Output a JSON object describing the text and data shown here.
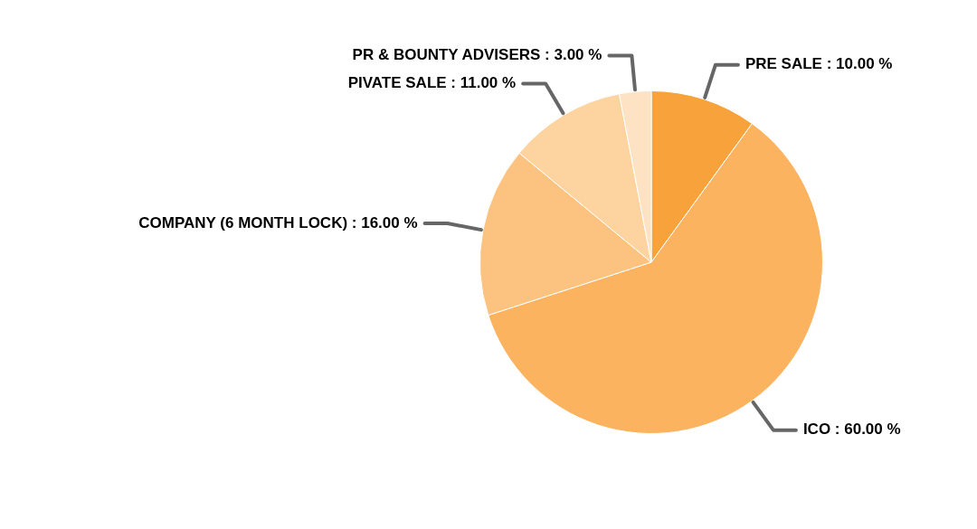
{
  "chart_data": {
    "type": "pie",
    "categories": [
      "PRE SALE",
      "ICO",
      "COMPANY (6 MONTH LOCK)",
      "PIVATE SALE",
      "PR & BOUNTY ADVISERS"
    ],
    "values": [
      10,
      60,
      16,
      11,
      3
    ],
    "value_labels": [
      "10.00 %",
      "60.00 %",
      "16.00 %",
      "11.00 %",
      "3.00 %"
    ],
    "colors": [
      "#f7a23a",
      "#fbb360",
      "#fcc27f",
      "#fdd3a0",
      "#fde3c3"
    ],
    "legend": false
  }
}
